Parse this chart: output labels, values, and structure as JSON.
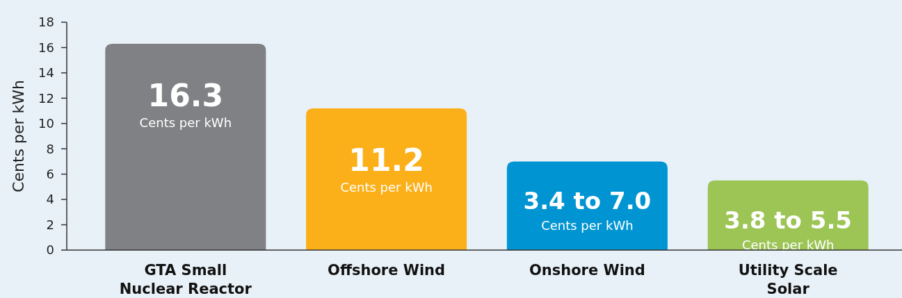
{
  "chart_data": {
    "type": "bar",
    "ylabel": "Cents per kWh",
    "categories": [
      "GTA Small Nuclear Reactor",
      "Offshore Wind",
      "Onshore Wind",
      "Utility Scale Solar"
    ],
    "values": [
      16.3,
      11.2,
      7.0,
      5.5
    ],
    "colors": [
      "#808184",
      "#fbb01a",
      "#0095d2",
      "#9cc556"
    ],
    "value_labels": [
      "16.3",
      "11.2",
      "3.4 to 7.0",
      "3.8 to 5.5"
    ],
    "annotations": [
      "Cents per kWh",
      "Cents per kWh",
      "Cents per kWh",
      "Cents per kWh"
    ],
    "ylim": [
      0,
      18
    ],
    "yticks": [
      0,
      2,
      4,
      6,
      8,
      10,
      12,
      14,
      16,
      18
    ],
    "grid": false
  }
}
